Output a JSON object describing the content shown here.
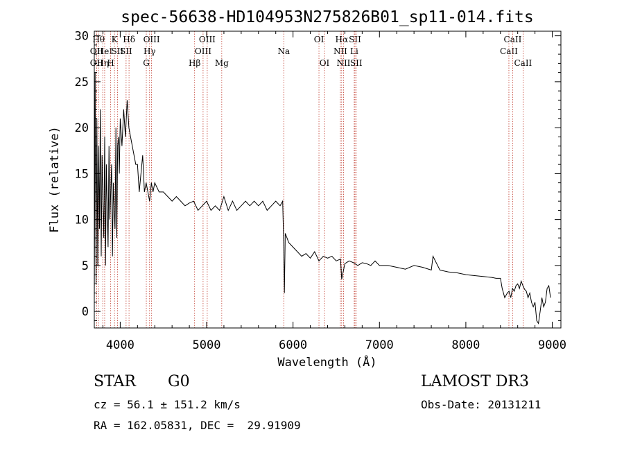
{
  "chart_data": {
    "type": "line",
    "title": "spec-56638-HD104953N275826B01_sp11-014.fits",
    "xlabel": "Wavelength (Å)",
    "ylabel": "Flux (relative)",
    "xlim": [
      3700,
      9100
    ],
    "ylim": [
      -1.8,
      30.5
    ],
    "xticks": [
      4000,
      5000,
      6000,
      7000,
      8000,
      9000
    ],
    "yticks": [
      0,
      5,
      10,
      15,
      20,
      25,
      30
    ],
    "grid": false,
    "series": [
      {
        "color": "#000000",
        "x": [
          3700,
          3710,
          3720,
          3730,
          3740,
          3750,
          3760,
          3770,
          3780,
          3790,
          3800,
          3810,
          3820,
          3830,
          3840,
          3850,
          3860,
          3870,
          3880,
          3890,
          3900,
          3910,
          3920,
          3930,
          3940,
          3950,
          3960,
          3970,
          3980,
          3990,
          4000,
          4020,
          4040,
          4060,
          4080,
          4100,
          4120,
          4140,
          4160,
          4180,
          4200,
          4220,
          4240,
          4260,
          4280,
          4300,
          4320,
          4340,
          4360,
          4380,
          4400,
          4450,
          4500,
          4550,
          4600,
          4650,
          4700,
          4750,
          4800,
          4850,
          4900,
          4950,
          5000,
          5050,
          5100,
          5150,
          5200,
          5250,
          5300,
          5350,
          5400,
          5450,
          5500,
          5550,
          5600,
          5650,
          5700,
          5750,
          5800,
          5850,
          5880,
          5893,
          5900,
          5910,
          5930,
          5950,
          6000,
          6050,
          6100,
          6150,
          6200,
          6250,
          6300,
          6350,
          6400,
          6450,
          6500,
          6550,
          6563,
          6600,
          6650,
          6700,
          6750,
          6800,
          6850,
          6900,
          6950,
          7000,
          7100,
          7200,
          7300,
          7400,
          7500,
          7600,
          7620,
          7700,
          7800,
          7900,
          8000,
          8100,
          8200,
          8300,
          8350,
          8400,
          8420,
          8450,
          8480,
          8500,
          8520,
          8540,
          8560,
          8580,
          8600,
          8620,
          8640,
          8660,
          8680,
          8700,
          8720,
          8740,
          8760,
          8780,
          8800,
          8820,
          8840,
          8860,
          8880,
          8900,
          8920,
          8940,
          8960,
          8980
        ],
        "y": [
          1,
          26,
          3,
          21,
          5,
          18,
          9,
          22,
          6,
          17,
          12,
          8,
          19,
          5,
          16,
          11,
          7,
          18,
          10,
          13,
          16,
          6,
          14,
          11,
          9,
          20,
          8,
          18,
          19,
          15,
          21,
          18,
          22,
          19,
          23,
          20,
          19,
          18,
          17,
          16,
          16,
          13,
          15,
          17,
          13,
          14,
          13,
          12,
          14,
          13,
          14,
          13,
          13,
          12.5,
          12,
          12.5,
          12,
          11.5,
          11.8,
          12,
          11,
          11.5,
          12,
          11,
          11.5,
          11,
          12.5,
          11,
          12,
          11,
          11.5,
          12,
          11.5,
          12,
          11.5,
          12,
          11,
          11.5,
          12,
          11.5,
          12,
          7,
          2,
          8.5,
          8,
          7.5,
          7,
          6.5,
          6,
          6.3,
          5.8,
          6.5,
          5.5,
          6,
          5.8,
          6,
          5.5,
          5.7,
          3.5,
          5.2,
          5.5,
          5.3,
          5,
          5.3,
          5.2,
          5,
          5.5,
          5,
          5,
          4.8,
          4.6,
          5,
          4.8,
          4.5,
          6,
          4.5,
          4.3,
          4.2,
          4,
          3.9,
          3.8,
          3.7,
          3.6,
          3.6,
          2.5,
          1.5,
          2,
          2.2,
          1.5,
          2.5,
          2.2,
          2.8,
          3,
          2.5,
          3.3,
          2.8,
          2.4,
          2.2,
          1.5,
          2,
          1,
          0.5,
          1,
          -1,
          -1.3,
          0,
          1.5,
          0.5,
          1,
          2.5,
          2.8,
          1.5
        ]
      }
    ],
    "lines": [
      {
        "wl": 3727,
        "text": "OII",
        "row": 2
      },
      {
        "wl": 3727,
        "text": "OII",
        "row": 3
      },
      {
        "wl": 3750,
        "text": "Hθ",
        "row": 1
      },
      {
        "wl": 3798,
        "text": "Hη",
        "row": 3
      },
      {
        "wl": 3820,
        "text": "HeI",
        "row": 2
      },
      {
        "wl": 3889,
        "text": "H",
        "row": 3
      },
      {
        "wl": 3934,
        "text": "K",
        "row": 1
      },
      {
        "wl": 3968,
        "text": "SII",
        "row": 2
      },
      {
        "wl": 4102,
        "text": "Hδ",
        "row": 1
      },
      {
        "wl": 4068,
        "text": "SII",
        "row": 2
      },
      {
        "wl": 4302,
        "text": "G",
        "row": 3
      },
      {
        "wl": 4340,
        "text": "Hγ",
        "row": 2
      },
      {
        "wl": 4363,
        "text": "OIII",
        "row": 1
      },
      {
        "wl": 4861,
        "text": "Hβ",
        "row": 3
      },
      {
        "wl": 4959,
        "text": "OIII",
        "row": 2
      },
      {
        "wl": 5007,
        "text": "OIII",
        "row": 1
      },
      {
        "wl": 5175,
        "text": "Mg",
        "row": 3
      },
      {
        "wl": 5893,
        "text": "Na",
        "row": 2
      },
      {
        "wl": 6300,
        "text": "OI",
        "row": 1
      },
      {
        "wl": 6364,
        "text": "OI",
        "row": 3
      },
      {
        "wl": 6548,
        "text": "NII",
        "row": 2
      },
      {
        "wl": 6563,
        "text": "Hα",
        "row": 1
      },
      {
        "wl": 6584,
        "text": "NII",
        "row": 3
      },
      {
        "wl": 6708,
        "text": "Li",
        "row": 2
      },
      {
        "wl": 6717,
        "text": "SII",
        "row": 1
      },
      {
        "wl": 6731,
        "text": "SII",
        "row": 3
      },
      {
        "wl": 8498,
        "text": "CaII",
        "row": 2
      },
      {
        "wl": 8542,
        "text": "CaII",
        "row": 1
      },
      {
        "wl": 8662,
        "text": "CaII",
        "row": 3
      }
    ]
  },
  "info": {
    "object_class": "STAR",
    "subclass": "G0",
    "survey": "LAMOST DR3",
    "cz": "cz = 56.1 ± 151.2 km/s",
    "obs_date": "Obs-Date: 20131211",
    "coords": "RA = 162.05831, DEC =  29.91909"
  }
}
